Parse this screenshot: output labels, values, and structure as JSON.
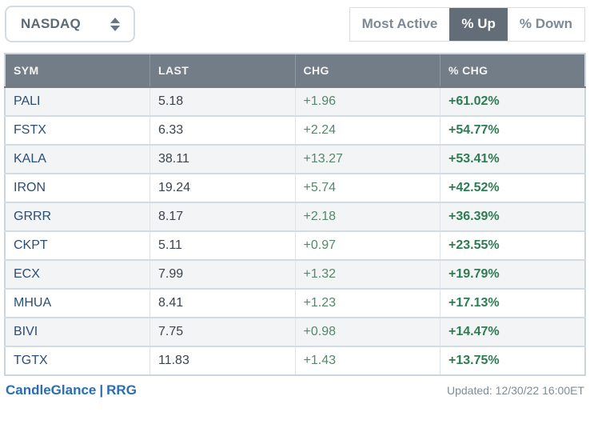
{
  "colors": {
    "header_bg": "#737d88",
    "active_button_bg": "#626d78",
    "symbol_link": "#2b4d74",
    "chg_green": "#55876a",
    "pct_green": "#2e7d52",
    "link_blue": "#2a6db4",
    "stripe_row": "#f2f4f6"
  },
  "controls": {
    "exchange_select": {
      "value": "NASDAQ"
    },
    "filters": [
      {
        "label": "Most Active",
        "active": false
      },
      {
        "label": "% Up",
        "active": true
      },
      {
        "label": "% Down",
        "active": false
      }
    ]
  },
  "table": {
    "columns": {
      "sym": "SYM",
      "last": "LAST",
      "chg": "CHG",
      "pct": "% CHG"
    },
    "rows": [
      {
        "sym": "PALI",
        "last": "5.18",
        "chg": "+1.96",
        "pct": "+61.02%"
      },
      {
        "sym": "FSTX",
        "last": "6.33",
        "chg": "+2.24",
        "pct": "+54.77%"
      },
      {
        "sym": "KALA",
        "last": "38.11",
        "chg": "+13.27",
        "pct": "+53.41%"
      },
      {
        "sym": "IRON",
        "last": "19.24",
        "chg": "+5.74",
        "pct": "+42.52%"
      },
      {
        "sym": "GRRR",
        "last": "8.17",
        "chg": "+2.18",
        "pct": "+36.39%"
      },
      {
        "sym": "CKPT",
        "last": "5.11",
        "chg": "+0.97",
        "pct": "+23.55%"
      },
      {
        "sym": "ECX",
        "last": "7.99",
        "chg": "+1.32",
        "pct": "+19.79%"
      },
      {
        "sym": "MHUA",
        "last": "8.41",
        "chg": "+1.23",
        "pct": "+17.13%"
      },
      {
        "sym": "BIVI",
        "last": "7.75",
        "chg": "+0.98",
        "pct": "+14.47%"
      },
      {
        "sym": "TGTX",
        "last": "11.83",
        "chg": "+1.43",
        "pct": "+13.75%"
      }
    ]
  },
  "footer": {
    "link1": "CandleGlance",
    "separator": "|",
    "link2": "RRG",
    "updated": "Updated: 12/30/22 16:00ET"
  }
}
